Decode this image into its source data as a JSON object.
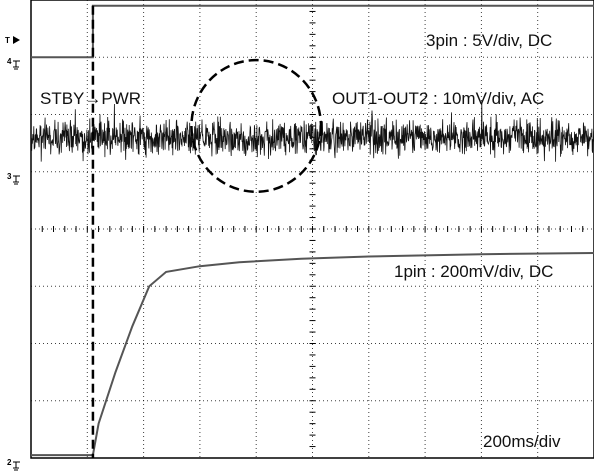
{
  "chart_data": {
    "type": "line",
    "grid": true,
    "horizontal_divisions": 10,
    "vertical_divisions": 8,
    "annotations": {
      "ch3": "3pin : 5V/div, DC",
      "outdiff": "OUT1-OUT2 : 10mV/div, AC",
      "ch1": "1pin : 200mV/div, DC",
      "timebase": "200ms/div",
      "event": "STBY→PWR"
    },
    "channel_markers": [
      {
        "id": "trigger",
        "label": "T",
        "glyph": "trigger-arrow"
      },
      {
        "id": "ch4",
        "label": "4",
        "glyph": "ground-marker"
      },
      {
        "id": "ch3",
        "label": "3",
        "glyph": "ground-marker"
      },
      {
        "id": "ch2",
        "label": "2",
        "glyph": "ground-marker"
      }
    ],
    "series": [
      {
        "name": "3pin",
        "units": "div",
        "x": [
          0,
          1.1,
          1.1,
          10
        ],
        "y": [
          7.0,
          7.0,
          7.9,
          7.9
        ]
      },
      {
        "name": "OUT1-OUT2",
        "units": "div",
        "baseline_y": 5.6,
        "noise_amplitude_div": 0.45,
        "x_range": [
          0,
          10
        ]
      },
      {
        "name": "1pin",
        "units": "div",
        "x": [
          0,
          1.1,
          1.2,
          1.5,
          1.8,
          2.1,
          2.4,
          3.0,
          3.7,
          4.8,
          6.0,
          8.0,
          10.0
        ],
        "y": [
          0.05,
          0.05,
          0.6,
          1.5,
          2.3,
          3.0,
          3.25,
          3.35,
          3.42,
          3.48,
          3.52,
          3.56,
          3.58
        ]
      }
    ],
    "highlight": {
      "shape": "dashed-ellipse",
      "center_x": 4.0,
      "center_y": 5.8,
      "rx": 1.15,
      "ry": 1.15
    },
    "event_marker_x": 1.1
  }
}
